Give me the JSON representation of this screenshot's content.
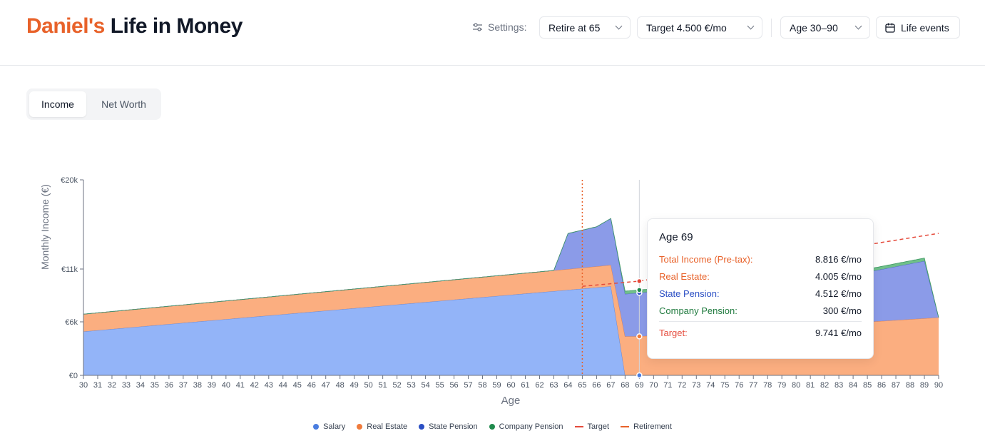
{
  "header": {
    "title_part1": "Daniel's",
    "title_part2": "Life in Money",
    "settings_label": "Settings:",
    "retire_label": "Retire at 65",
    "target_label": "Target 4.500 €/mo",
    "age_label": "Age 30–90",
    "life_events_label": "Life events"
  },
  "tabs": [
    {
      "label": "Income",
      "active": true
    },
    {
      "label": "Net Worth",
      "active": false
    }
  ],
  "chart_data": {
    "type": "area",
    "ylabel": "Monthly Income (€)",
    "xlabel": "Age",
    "x": [
      30,
      31,
      32,
      33,
      34,
      35,
      36,
      37,
      38,
      39,
      40,
      41,
      42,
      43,
      44,
      45,
      46,
      47,
      48,
      49,
      50,
      51,
      52,
      53,
      54,
      55,
      56,
      57,
      58,
      59,
      60,
      61,
      62,
      63,
      64,
      65,
      66,
      67,
      68,
      69,
      70,
      71,
      72,
      73,
      74,
      75,
      76,
      77,
      78,
      79,
      80,
      81,
      82,
      83,
      84,
      85,
      86,
      87,
      88,
      89,
      90
    ],
    "xlim": [
      30,
      90
    ],
    "ylim": [
      0,
      20000
    ],
    "y_ticks": [
      {
        "value": 0,
        "label": "€0"
      },
      {
        "value": 5500,
        "label": "€6k"
      },
      {
        "value": 11000,
        "label": "€11k"
      },
      {
        "value": 20000,
        "label": "€20k"
      }
    ],
    "stacked": true,
    "colors": {
      "salary": "#93b4f8",
      "real_estate": "#fbae80",
      "state_pension": "#8b9be8",
      "company_pension": "#6fbf8a",
      "target": "#e54b3c",
      "retirement": "#e8622a"
    },
    "series": [
      {
        "name": "Salary",
        "color": "#3b6fd8",
        "points": [
          [
            30,
            4500
          ],
          [
            67,
            9200
          ],
          [
            68,
            0
          ],
          [
            90,
            0
          ]
        ]
      },
      {
        "name": "Real Estate",
        "color": "#e8732a",
        "points": [
          [
            30,
            1800
          ],
          [
            67,
            2200
          ],
          [
            68,
            4000
          ],
          [
            69,
            4005
          ],
          [
            90,
            5950
          ]
        ]
      },
      {
        "name": "State Pension",
        "color": "#2b4fc4",
        "points": [
          [
            30,
            0
          ],
          [
            63,
            0
          ],
          [
            64,
            3600
          ],
          [
            66,
            4000
          ],
          [
            67,
            4700
          ],
          [
            68,
            4400
          ],
          [
            69,
            4512
          ],
          [
            85,
            5200
          ],
          [
            89,
            5950
          ],
          [
            90,
            0
          ]
        ]
      },
      {
        "name": "Company Pension",
        "color": "#1f8a4c",
        "points": [
          [
            30,
            0
          ],
          [
            67,
            0
          ],
          [
            68,
            300
          ],
          [
            69,
            300
          ],
          [
            89,
            300
          ],
          [
            90,
            0
          ]
        ]
      },
      {
        "name": "Target",
        "color": "#e54b3c",
        "points": [
          [
            65,
            9200
          ],
          [
            69,
            9741
          ],
          [
            90,
            14600
          ]
        ]
      },
      {
        "name": "Retirement",
        "color": "#e8622a",
        "x": 65
      }
    ],
    "hover_age": 69,
    "tooltip": {
      "title": "Age 69",
      "rows": [
        {
          "label": "Total Income (Pre-tax):",
          "value": "8.816 €/mo",
          "color": "#e8622a"
        },
        {
          "label": "Real Estate:",
          "value": "4.005 €/mo",
          "color": "#e8622a"
        },
        {
          "label": "State Pension:",
          "value": "4.512 €/mo",
          "color": "#2b4fc4"
        },
        {
          "label": "Company Pension:",
          "value": "300 €/mo",
          "color": "#1f7a3e"
        }
      ],
      "target": {
        "label": "Target:",
        "value": "9.741 €/mo",
        "color": "#e54b3c"
      }
    }
  },
  "legend": [
    {
      "label": "Salary",
      "type": "dot",
      "color": "#4a7de0"
    },
    {
      "label": "Real Estate",
      "type": "dot",
      "color": "#f07b3c"
    },
    {
      "label": "State Pension",
      "type": "dot",
      "color": "#2b4fc4"
    },
    {
      "label": "Company Pension",
      "type": "dot",
      "color": "#1f8a4c"
    },
    {
      "label": "Target",
      "type": "line",
      "color": "#e54b3c"
    },
    {
      "label": "Retirement",
      "type": "line",
      "color": "#e8622a"
    }
  ]
}
